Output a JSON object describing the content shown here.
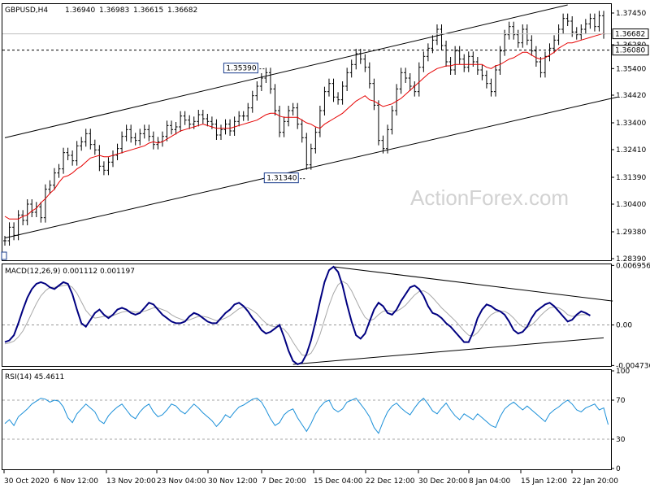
{
  "chart_data": [
    {
      "type": "line",
      "panel": "price",
      "title": "GBPUSD,H4",
      "ohlc_values": [
        "1.36940",
        "1.36983",
        "1.36615",
        "1.36682"
      ],
      "watermark": "ActionForex.com",
      "ylim": [
        1.2839,
        1.3775
      ],
      "y_ticks": [
        "1.37450",
        "1.36280",
        "1.35400",
        "1.34420",
        "1.33400",
        "1.32410",
        "1.31390",
        "1.30400",
        "1.29380",
        "1.28390"
      ],
      "x_ticks": [
        "30 Oct 2020",
        "6 Nov 12:00",
        "13 Nov 20:00",
        "23 Nov 04:00",
        "30 Nov 12:00",
        "7 Dec 20:00",
        "15 Dec 04:00",
        "22 Dec 12:00",
        "30 Dec 20:00",
        "8 Jan 04:00",
        "15 Jan 12:00",
        "22 Jan 20:00"
      ],
      "last_price": "1.36682",
      "last_price_value": 1.36682,
      "hline": "1.36080",
      "hline_value": 1.3608,
      "annotations": [
        {
          "text": "1.35390",
          "value": 1.3539,
          "bar": 58
        },
        {
          "text": "1.31340",
          "value": 1.3134,
          "bar": 67
        }
      ],
      "series": [
        {
          "name": "",
          "color": "#000000",
          "values": [
            1.2905,
            1.2955,
            1.2925,
            1.3,
            1.298,
            1.304,
            1.301,
            1.303,
            1.299,
            1.3095,
            1.311,
            1.3155,
            1.317,
            1.323,
            1.322,
            1.32,
            1.3255,
            1.327,
            1.33,
            1.326,
            1.324,
            1.318,
            1.3165,
            1.3195,
            1.322,
            1.3245,
            1.329,
            1.3315,
            1.3285,
            1.3275,
            1.33,
            1.3315,
            1.329,
            1.326,
            1.327,
            1.329,
            1.333,
            1.3315,
            1.3325,
            1.3365,
            1.335,
            1.3335,
            1.3345,
            1.337,
            1.3355,
            1.3345,
            1.3335,
            1.3295,
            1.3315,
            1.3335,
            1.331,
            1.3345,
            1.3365,
            1.3365,
            1.3395,
            1.344,
            1.3475,
            1.3505,
            1.3525,
            1.3465,
            1.3385,
            1.3305,
            1.3345,
            1.3385,
            1.3395,
            1.3335,
            1.3285,
            1.3185,
            1.3245,
            1.3305,
            1.3385,
            1.3455,
            1.3485,
            1.3435,
            1.3425,
            1.3475,
            1.3525,
            1.3555,
            1.3595,
            1.3575,
            1.3545,
            1.3485,
            1.3405,
            1.3275,
            1.3245,
            1.3315,
            1.3385,
            1.3465,
            1.3525,
            1.3505,
            1.3475,
            1.3455,
            1.3545,
            1.3585,
            1.3615,
            1.3645,
            1.3685,
            1.3625,
            1.3565,
            1.3535,
            1.3605,
            1.3575,
            1.3545,
            1.3585,
            1.3565,
            1.3535,
            1.3515,
            1.3485,
            1.3455,
            1.3535,
            1.3605,
            1.3665,
            1.3695,
            1.3665,
            1.3635,
            1.3685,
            1.3645,
            1.3605,
            1.3565,
            1.3525,
            1.3585,
            1.3615,
            1.3645,
            1.3685,
            1.3725,
            1.3715,
            1.3675,
            1.3665,
            1.3685,
            1.3705,
            1.3725,
            1.3695,
            1.3735,
            1.3668
          ]
        },
        {
          "name": "",
          "color": "#e60000",
          "values": [
            1.2995,
            1.2985,
            1.2985,
            1.2985,
            1.2995,
            1.3,
            1.3015,
            1.3025,
            1.3045,
            1.306,
            1.308,
            1.3095,
            1.312,
            1.314,
            1.3145,
            1.3155,
            1.317,
            1.318,
            1.3195,
            1.321,
            1.3215,
            1.322,
            1.3215,
            1.3215,
            1.322,
            1.3225,
            1.323,
            1.3235,
            1.324,
            1.3245,
            1.325,
            1.3255,
            1.3265,
            1.327,
            1.3265,
            1.327,
            1.328,
            1.329,
            1.33,
            1.331,
            1.3315,
            1.332,
            1.3325,
            1.333,
            1.3335,
            1.333,
            1.3325,
            1.332,
            1.332,
            1.332,
            1.332,
            1.3325,
            1.333,
            1.3335,
            1.334,
            1.3345,
            1.335,
            1.336,
            1.337,
            1.3375,
            1.3375,
            1.3365,
            1.336,
            1.336,
            1.336,
            1.336,
            1.335,
            1.334,
            1.3335,
            1.3325,
            1.332,
            1.3335,
            1.3345,
            1.3355,
            1.3365,
            1.3375,
            1.339,
            1.3405,
            1.342,
            1.343,
            1.344,
            1.3425,
            1.342,
            1.341,
            1.34,
            1.3405,
            1.341,
            1.342,
            1.343,
            1.3445,
            1.346,
            1.3475,
            1.349,
            1.3505,
            1.352,
            1.353,
            1.354,
            1.3545,
            1.355,
            1.355,
            1.3555,
            1.3555,
            1.3555,
            1.3555,
            1.3555,
            1.3555,
            1.3555,
            1.3545,
            1.354,
            1.355,
            1.3555,
            1.3565,
            1.3575,
            1.358,
            1.359,
            1.36,
            1.36,
            1.359,
            1.358,
            1.3575,
            1.358,
            1.359,
            1.36,
            1.3615,
            1.3625,
            1.3635,
            1.3635,
            1.364,
            1.3645,
            1.365,
            1.3655,
            1.366,
            1.3665,
            1.367
          ]
        }
      ],
      "trendlines_value_units": [
        {
          "name": "channel-upper",
          "from": {
            "bar": 0,
            "y": 1.3285
          },
          "to": {
            "bar": 125,
            "y": 1.3775
          }
        },
        {
          "name": "channel-lower",
          "from": {
            "bar": 0,
            "y": 1.2915
          },
          "to": {
            "bar": 136,
            "y": 1.3435
          }
        }
      ]
    },
    {
      "type": "line",
      "panel": "macd",
      "title": "MACD(12,26,9) 0.001112 0.001197",
      "ylim": [
        -0.0047,
        0.00699
      ],
      "y_ticks": [
        "0.006956",
        "0.00",
        "-0.004736"
      ],
      "series": [
        {
          "name": "",
          "color": "#000080",
          "values": [
            -0.002,
            -0.0018,
            -0.0012,
            0.0002,
            0.0018,
            0.0032,
            0.0042,
            0.0048,
            0.005,
            0.0048,
            0.0044,
            0.0042,
            0.0046,
            0.005,
            0.0048,
            0.0036,
            0.0018,
            0.0002,
            -0.0002,
            0.0006,
            0.0014,
            0.0018,
            0.0012,
            0.0008,
            0.0012,
            0.0018,
            0.002,
            0.0018,
            0.0014,
            0.0012,
            0.0014,
            0.002,
            0.0026,
            0.0024,
            0.0018,
            0.0012,
            0.0008,
            0.0004,
            0.0002,
            0.0002,
            0.0004,
            0.001,
            0.0014,
            0.0012,
            0.0008,
            0.0004,
            0.0002,
            0.0002,
            0.0008,
            0.0014,
            0.0018,
            0.0024,
            0.0026,
            0.0022,
            0.0016,
            0.0008,
            0.0002,
            -0.0006,
            -0.001,
            -0.0008,
            -0.0004,
            0.0,
            -0.0014,
            -0.003,
            -0.0042,
            -0.0046,
            -0.0044,
            -0.0034,
            -0.0018,
            0.0004,
            0.0028,
            0.005,
            0.0064,
            0.0068,
            0.0062,
            0.0046,
            0.0024,
            0.0004,
            -0.0012,
            -0.0016,
            -0.001,
            0.0004,
            0.0018,
            0.0026,
            0.0022,
            0.0014,
            0.0012,
            0.0018,
            0.0028,
            0.0036,
            0.0044,
            0.0046,
            0.0042,
            0.0034,
            0.0022,
            0.0014,
            0.0012,
            0.0008,
            0.0002,
            -0.0002,
            -0.0008,
            -0.0014,
            -0.002,
            -0.002,
            -0.0008,
            0.0008,
            0.0018,
            0.0024,
            0.0022,
            0.0018,
            0.0016,
            0.0012,
            0.0004,
            -0.0006,
            -0.001,
            -0.0008,
            -0.0002,
            0.0008,
            0.0016,
            0.002,
            0.0024,
            0.0026,
            0.0022,
            0.0016,
            0.001,
            0.0004,
            0.0006,
            0.0012,
            0.0016,
            0.0014,
            0.0011
          ]
        },
        {
          "name": "",
          "color": "#a8a8a8",
          "values": [
            -0.0022,
            -0.0021,
            -0.0019,
            -0.0014,
            -0.0007,
            0.0003,
            0.0014,
            0.0025,
            0.0034,
            0.004,
            0.0044,
            0.0044,
            0.0045,
            0.0046,
            0.0047,
            0.0044,
            0.0037,
            0.0027,
            0.0017,
            0.0011,
            0.0008,
            0.0009,
            0.001,
            0.001,
            0.0011,
            0.0013,
            0.0015,
            0.0016,
            0.0016,
            0.0015,
            0.0015,
            0.0016,
            0.0018,
            0.002,
            0.002,
            0.0018,
            0.0016,
            0.0012,
            0.0009,
            0.0007,
            0.0005,
            0.0006,
            0.0008,
            0.001,
            0.001,
            0.0009,
            0.0007,
            0.0005,
            0.0006,
            0.0008,
            0.0011,
            0.0015,
            0.0019,
            0.0021,
            0.002,
            0.0017,
            0.0013,
            0.0007,
            0.0002,
            -0.0001,
            -0.0002,
            -0.0002,
            -0.0005,
            -0.0011,
            -0.002,
            -0.0028,
            -0.0035,
            -0.0036,
            -0.0033,
            -0.0024,
            -0.0011,
            0.0006,
            0.0023,
            0.0037,
            0.0047,
            0.0051,
            0.0048,
            0.004,
            0.0029,
            0.0018,
            0.0009,
            0.0005,
            0.0007,
            0.0012,
            0.0016,
            0.0017,
            0.0016,
            0.0016,
            0.0019,
            0.0023,
            0.0029,
            0.0035,
            0.0039,
            0.004,
            0.0037,
            0.0032,
            0.0026,
            0.002,
            0.0015,
            0.001,
            0.0005,
            -0.0001,
            -0.0007,
            -0.0012,
            -0.0013,
            -0.0009,
            -0.0002,
            0.0006,
            0.0012,
            0.0015,
            0.0016,
            0.0016,
            0.0013,
            0.0008,
            0.0002,
            -0.0002,
            -0.0003,
            0.0,
            0.0005,
            0.0011,
            0.0016,
            0.002,
            0.0021,
            0.002,
            0.0017,
            0.0012,
            0.001,
            0.0011,
            0.0012,
            0.0012,
            0.0012
          ]
        }
      ],
      "trendlines_value_units": [
        {
          "name": "triangle-upper",
          "from": {
            "bar": 73,
            "y": 0.0068
          },
          "to": {
            "bar": 135,
            "y": 0.0028
          }
        },
        {
          "name": "triangle-lower",
          "from": {
            "bar": 64,
            "y": -0.0046
          },
          "to": {
            "bar": 133,
            "y": -0.0015
          }
        }
      ]
    },
    {
      "type": "line",
      "panel": "rsi",
      "title": "RSI(14) 45.4611",
      "ylim": [
        0,
        100
      ],
      "y_ticks": [
        "100",
        "70",
        "30",
        "0"
      ],
      "levels": [
        70,
        30
      ],
      "series": [
        {
          "name": "",
          "color": "#1a8fd8",
          "values": [
            46,
            50,
            44,
            53,
            57,
            61,
            66,
            69,
            72,
            71,
            68,
            70,
            69,
            63,
            52,
            47,
            56,
            61,
            66,
            62,
            58,
            49,
            46,
            54,
            59,
            63,
            66,
            60,
            54,
            51,
            58,
            63,
            66,
            58,
            53,
            55,
            60,
            66,
            64,
            59,
            56,
            61,
            66,
            62,
            57,
            53,
            49,
            43,
            48,
            55,
            52,
            58,
            63,
            65,
            68,
            71,
            72,
            68,
            60,
            51,
            44,
            47,
            55,
            59,
            61,
            52,
            45,
            38,
            46,
            56,
            63,
            68,
            70,
            61,
            58,
            61,
            68,
            70,
            72,
            66,
            60,
            53,
            42,
            36,
            48,
            58,
            64,
            67,
            62,
            58,
            55,
            62,
            68,
            72,
            66,
            59,
            56,
            62,
            67,
            60,
            54,
            50,
            56,
            53,
            50,
            56,
            52,
            48,
            44,
            42,
            53,
            61,
            65,
            68,
            64,
            60,
            64,
            60,
            56,
            52,
            48,
            56,
            60,
            63,
            67,
            70,
            66,
            60,
            58,
            62,
            64,
            66,
            60,
            62,
            45
          ]
        }
      ]
    }
  ]
}
